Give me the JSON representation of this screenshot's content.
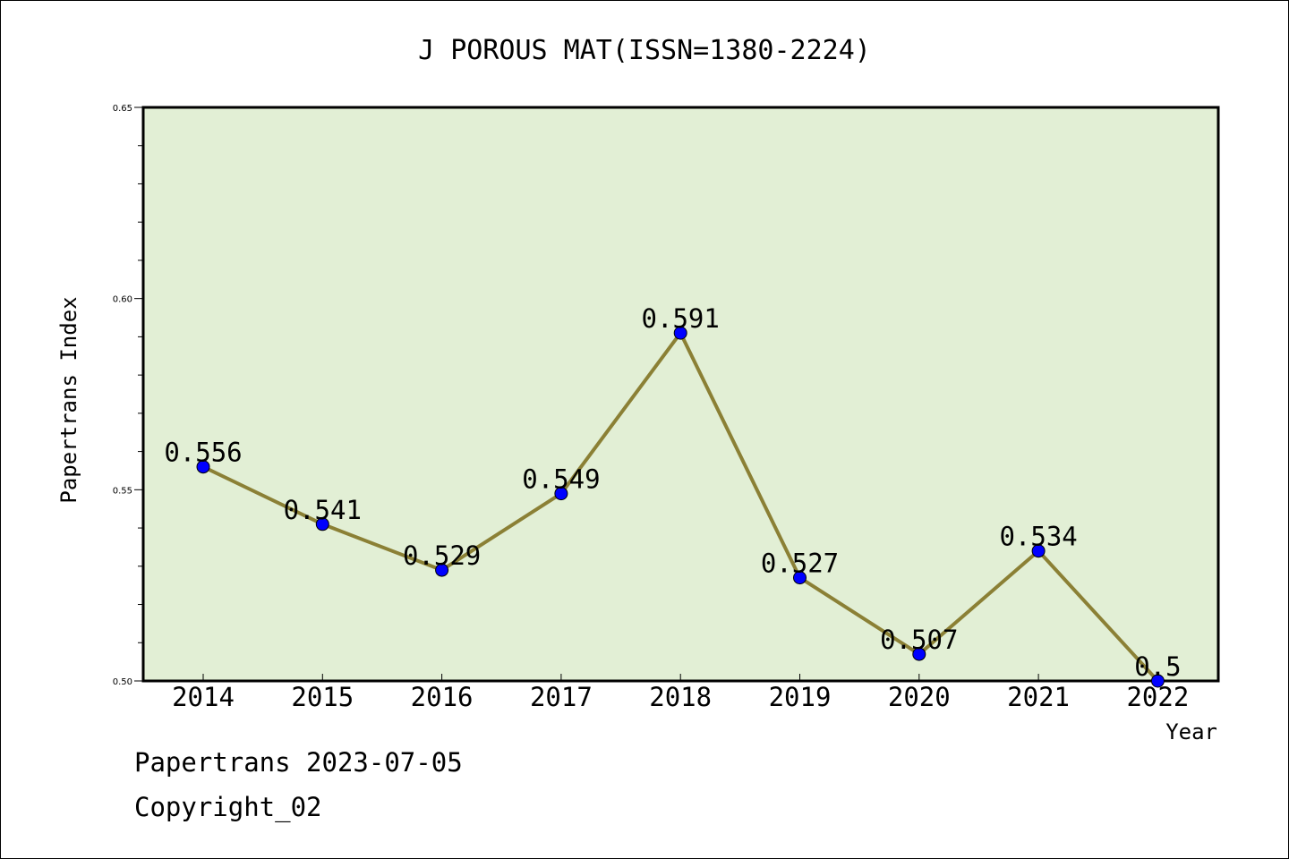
{
  "chart_data": {
    "type": "line",
    "title": "J POROUS MAT(ISSN=1380-2224)",
    "xlabel": "Year",
    "ylabel": "Papertrans Index",
    "categories": [
      "2014",
      "2015",
      "2016",
      "2017",
      "2018",
      "2019",
      "2020",
      "2021",
      "2022"
    ],
    "values": [
      0.556,
      0.541,
      0.529,
      0.549,
      0.591,
      0.527,
      0.507,
      0.534,
      0.5
    ],
    "data_labels": [
      "0.556",
      "0.541",
      "0.529",
      "0.549",
      "0.591",
      "0.527",
      "0.507",
      "0.534",
      "0.5"
    ],
    "ylim": [
      0.5,
      0.65
    ],
    "yticks": [
      "0.50",
      "0.55",
      "0.60",
      "0.65"
    ],
    "grid": false,
    "legend": "none",
    "colors": {
      "plot_background": "#e2efd5",
      "line": "#8b8035",
      "marker": "#0000ff"
    }
  },
  "footer": {
    "date_line": "Papertrans 2023-07-05",
    "copyright": "Copyright_02"
  }
}
